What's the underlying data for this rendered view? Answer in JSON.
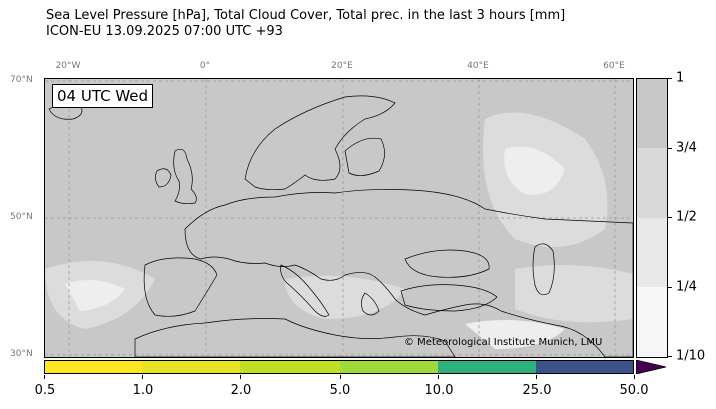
{
  "title": {
    "line1": "Sea Level Pressure [hPa], Total Cloud Cover, Total prec. in the last 3 hours [mm]",
    "line2": "ICON-EU 13.09.2025 07:00 UTC +93"
  },
  "map": {
    "valid_time": "04 UTC Wed",
    "copyright": "© Meteorological Institute Munich, LMU",
    "lon_labels": [
      "20°W",
      "0°",
      "20°E",
      "40°E",
      "60°E"
    ],
    "lat_labels": [
      "70°N",
      "50°N",
      "30°N"
    ],
    "ocean_color": "#c8c8c8",
    "land_color": "#dcdcdc"
  },
  "cloud_cover_scale": {
    "labels": [
      "1",
      "3/4",
      "1/2",
      "1/4",
      "1/10"
    ],
    "colors": [
      "#c8c8c8",
      "#d9d9d9",
      "#e8e8e8",
      "#f6f6f6"
    ]
  },
  "precip_scale": {
    "labels": [
      "0.5",
      "1.0",
      "2.0",
      "5.0",
      "10.0",
      "25.0",
      "50.0"
    ],
    "colors": [
      "#fde725",
      "#e6e423",
      "#c2df23",
      "#a0da39",
      "#2db27d",
      "#3b528b",
      "#440154"
    ]
  }
}
